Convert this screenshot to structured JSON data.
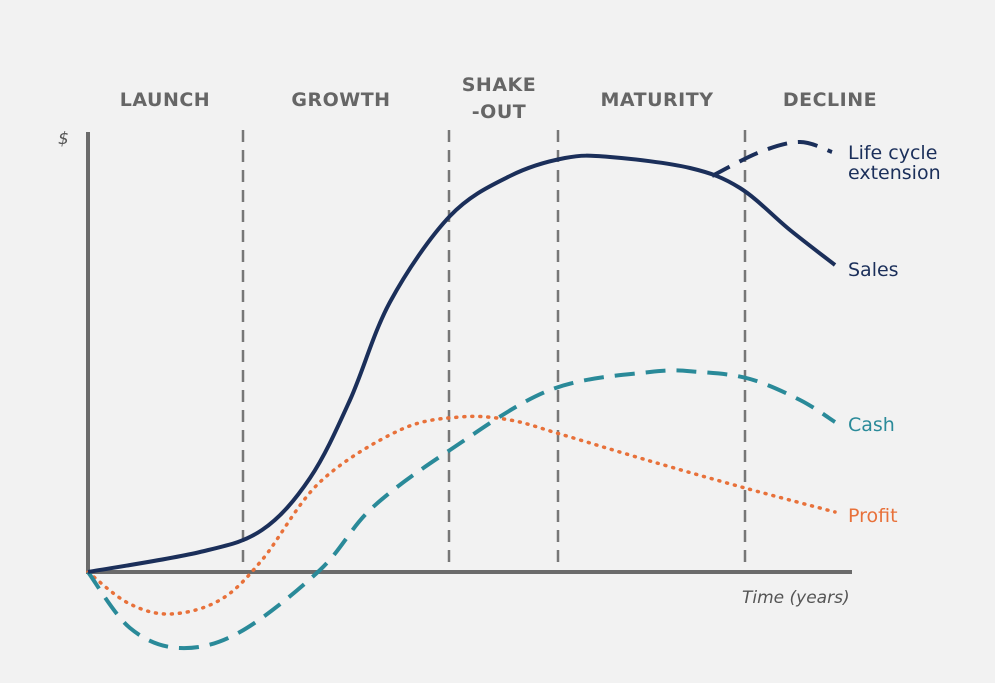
{
  "diagram": {
    "stages": [
      {
        "lines": [
          "LAUNCH"
        ]
      },
      {
        "lines": [
          "GROWTH"
        ]
      },
      {
        "lines": [
          "SHAKE",
          "-OUT"
        ]
      },
      {
        "lines": [
          "MATURITY"
        ]
      },
      {
        "lines": [
          "DECLINE"
        ]
      }
    ],
    "y_axis_label": "$",
    "x_axis_label": "Time (years)",
    "curve_labels": {
      "extension": [
        "Life cycle",
        "extension"
      ],
      "sales": "Sales",
      "cash": "Cash",
      "profit": "Profit"
    }
  }
}
